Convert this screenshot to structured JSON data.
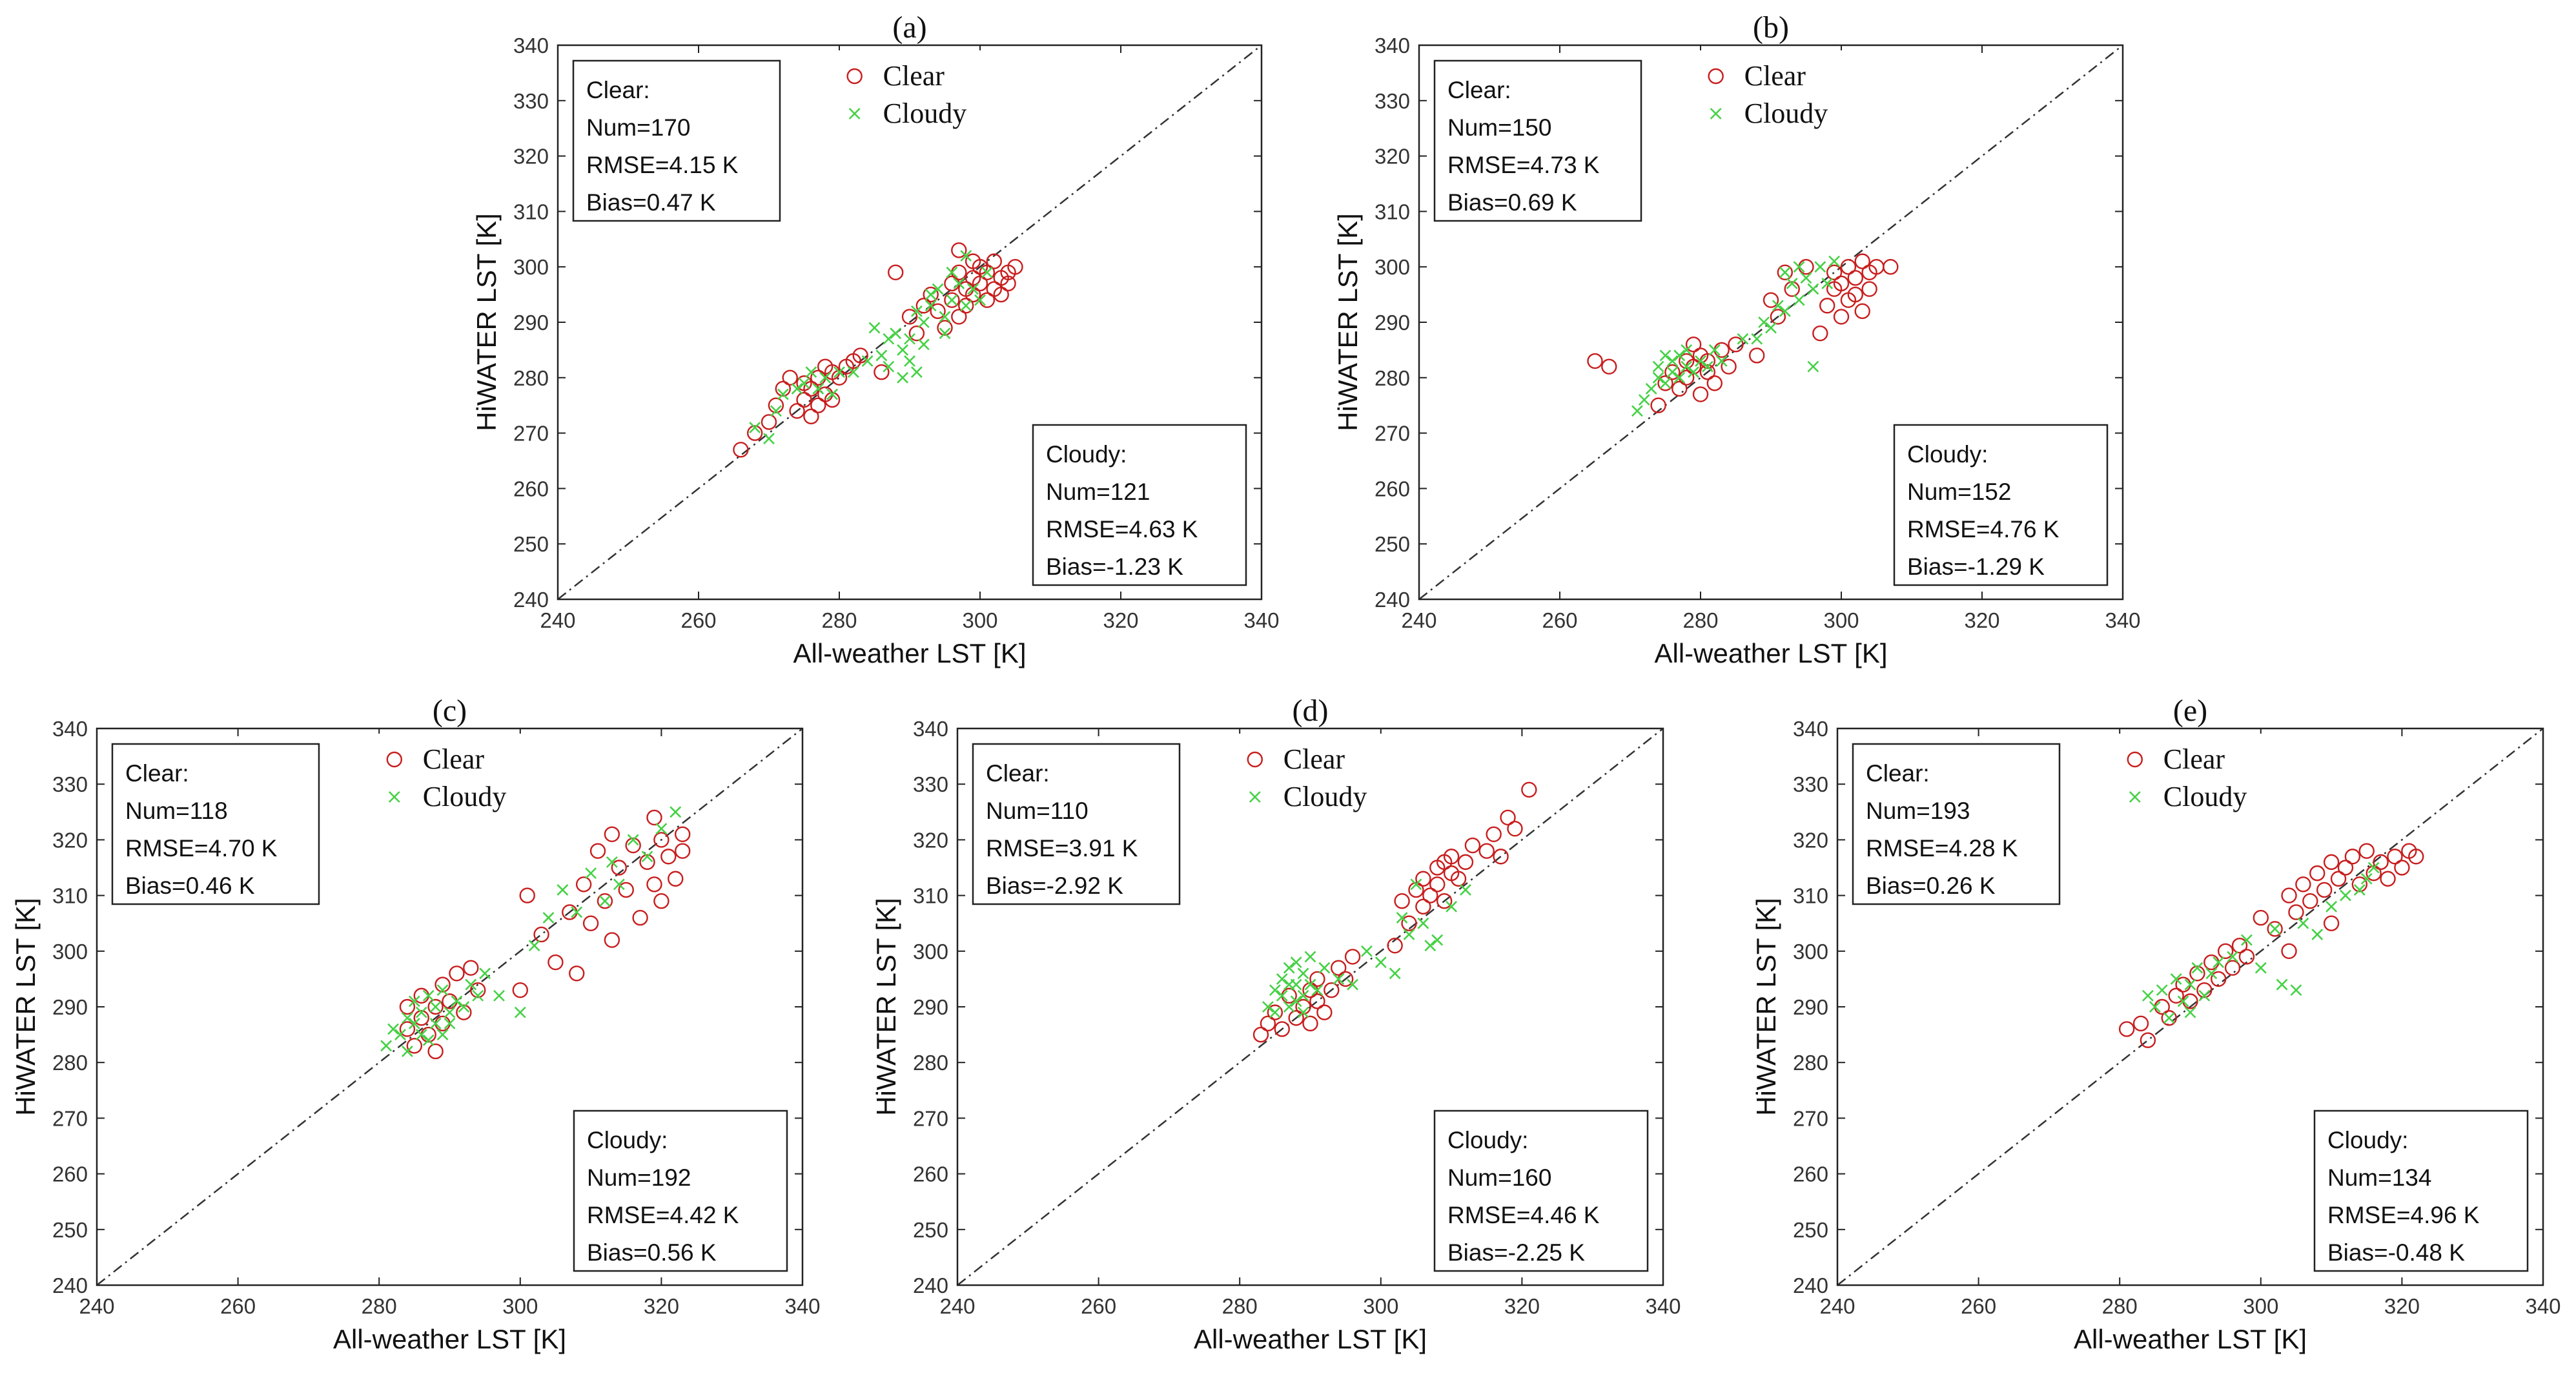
{
  "colors": {
    "clear": "#c81e1e",
    "cloudy": "#45d145",
    "axis": "#222222",
    "diagonal": "#333333"
  },
  "chart_data": [
    {
      "type": "scatter",
      "title": "(a)",
      "xlabel": "All-weather LST [K]",
      "ylabel": "HiWATER LST [K]",
      "xlim": [
        240,
        340
      ],
      "ylim": [
        240,
        340
      ],
      "xticks": [
        "240",
        "260",
        "280",
        "300",
        "320",
        "340"
      ],
      "yticks": [
        "240",
        "250",
        "260",
        "270",
        "280",
        "290",
        "300",
        "310",
        "320",
        "330",
        "340"
      ],
      "legend": [
        "Clear",
        "Cloudy"
      ],
      "clear_stats": [
        "Clear:",
        "Num=170",
        "RMSE=4.15 K",
        "Bias=0.47 K"
      ],
      "cloudy_stats": [
        "Cloudy:",
        "Num=121",
        "RMSE=4.63 K",
        "Bias=-1.23 K"
      ],
      "series": [
        {
          "name": "Clear",
          "marker": "circle",
          "x": [
            266,
            268,
            270,
            271,
            272,
            273,
            274,
            275,
            275,
            276,
            276,
            277,
            277,
            278,
            278,
            279,
            279,
            280,
            281,
            282,
            283,
            286,
            288,
            290,
            291,
            292,
            293,
            294,
            295,
            296,
            296,
            297,
            297,
            298,
            298,
            299,
            299,
            300,
            300,
            301,
            301,
            302,
            302,
            303,
            303,
            304,
            304,
            305,
            297,
            299
          ],
          "y": [
            267,
            270,
            272,
            275,
            278,
            280,
            274,
            276,
            279,
            273,
            278,
            275,
            280,
            277,
            282,
            276,
            281,
            280,
            282,
            283,
            284,
            281,
            299,
            291,
            288,
            293,
            295,
            292,
            289,
            294,
            297,
            291,
            299,
            296,
            293,
            298,
            295,
            300,
            297,
            294,
            299,
            301,
            296,
            298,
            295,
            299,
            297,
            300,
            303,
            301
          ]
        },
        {
          "name": "Cloudy",
          "marker": "x",
          "x": [
            268,
            270,
            271,
            272,
            274,
            275,
            276,
            277,
            278,
            279,
            280,
            282,
            284,
            286,
            287,
            288,
            289,
            290,
            290,
            291,
            292,
            292,
            293,
            294,
            295,
            295,
            296,
            297,
            298,
            299,
            300,
            301,
            291,
            289,
            287,
            285,
            293,
            296,
            298
          ],
          "y": [
            271,
            269,
            274,
            277,
            278,
            279,
            281,
            278,
            280,
            277,
            281,
            281,
            283,
            284,
            282,
            288,
            285,
            287,
            283,
            292,
            290,
            286,
            293,
            296,
            291,
            288,
            294,
            297,
            293,
            296,
            294,
            299,
            281,
            280,
            287,
            289,
            295,
            299,
            302
          ]
        }
      ]
    },
    {
      "type": "scatter",
      "title": "(b)",
      "xlabel": "All-weather LST [K]",
      "ylabel": "HiWATER LST [K]",
      "xlim": [
        240,
        340
      ],
      "ylim": [
        240,
        340
      ],
      "xticks": [
        "240",
        "260",
        "280",
        "300",
        "320",
        "340"
      ],
      "yticks": [
        "240",
        "250",
        "260",
        "270",
        "280",
        "290",
        "300",
        "310",
        "320",
        "330",
        "340"
      ],
      "legend": [
        "Clear",
        "Cloudy"
      ],
      "clear_stats": [
        "Clear:",
        "Num=150",
        "RMSE=4.73 K",
        "Bias=0.69 K"
      ],
      "cloudy_stats": [
        "Cloudy:",
        "Num=152",
        "RMSE=4.76 K",
        "Bias=-1.29 K"
      ],
      "series": [
        {
          "name": "Clear",
          "marker": "circle",
          "x": [
            265,
            267,
            274,
            275,
            276,
            277,
            278,
            278,
            279,
            279,
            280,
            280,
            281,
            281,
            282,
            283,
            284,
            285,
            288,
            290,
            291,
            292,
            293,
            295,
            297,
            298,
            299,
            299,
            300,
            300,
            301,
            301,
            302,
            302,
            303,
            303,
            304,
            304,
            305,
            307
          ],
          "y": [
            283,
            282,
            275,
            279,
            281,
            278,
            283,
            280,
            286,
            282,
            277,
            284,
            281,
            283,
            279,
            285,
            282,
            286,
            284,
            294,
            291,
            299,
            296,
            300,
            288,
            293,
            296,
            299,
            291,
            297,
            294,
            300,
            295,
            298,
            292,
            301,
            296,
            299,
            300,
            300
          ]
        },
        {
          "name": "Cloudy",
          "marker": "x",
          "x": [
            271,
            272,
            273,
            274,
            274,
            275,
            275,
            276,
            276,
            277,
            277,
            278,
            278,
            279,
            280,
            281,
            282,
            283,
            286,
            288,
            289,
            290,
            291,
            292,
            293,
            294,
            295,
            296,
            296,
            297,
            298,
            299,
            292,
            294
          ],
          "y": [
            274,
            276,
            278,
            280,
            282,
            279,
            284,
            281,
            283,
            280,
            284,
            282,
            285,
            281,
            283,
            282,
            285,
            283,
            287,
            287,
            290,
            289,
            293,
            292,
            297,
            294,
            298,
            296,
            282,
            300,
            297,
            301,
            299,
            300
          ]
        }
      ]
    },
    {
      "type": "scatter",
      "title": "(c)",
      "xlabel": "All-weather LST [K]",
      "ylabel": "HiWATER LST [K]",
      "xlim": [
        240,
        340
      ],
      "ylim": [
        240,
        340
      ],
      "xticks": [
        "240",
        "260",
        "280",
        "300",
        "320",
        "340"
      ],
      "yticks": [
        "240",
        "250",
        "260",
        "270",
        "280",
        "290",
        "300",
        "310",
        "320",
        "330",
        "340"
      ],
      "legend": [
        "Clear",
        "Cloudy"
      ],
      "clear_stats": [
        "Clear:",
        "Num=118",
        "RMSE=4.70 K",
        "Bias=0.46 K"
      ],
      "cloudy_stats": [
        "Cloudy:",
        "Num=192",
        "RMSE=4.42 K",
        "Bias=0.56 K"
      ],
      "series": [
        {
          "name": "Clear",
          "marker": "circle",
          "x": [
            284,
            284,
            285,
            286,
            286,
            287,
            288,
            288,
            289,
            289,
            290,
            291,
            292,
            293,
            294,
            300,
            301,
            303,
            305,
            307,
            308,
            309,
            310,
            311,
            312,
            313,
            313,
            314,
            315,
            316,
            317,
            318,
            319,
            319,
            320,
            320,
            321,
            322,
            323,
            323
          ],
          "y": [
            290,
            286,
            283,
            288,
            292,
            285,
            290,
            282,
            294,
            287,
            291,
            296,
            289,
            297,
            293,
            293,
            310,
            303,
            298,
            307,
            296,
            312,
            305,
            318,
            309,
            321,
            302,
            315,
            311,
            319,
            306,
            316,
            324,
            312,
            320,
            309,
            317,
            313,
            318,
            321
          ]
        },
        {
          "name": "Cloudy",
          "marker": "x",
          "x": [
            281,
            282,
            283,
            284,
            284,
            285,
            285,
            286,
            286,
            287,
            287,
            288,
            288,
            289,
            289,
            290,
            290,
            291,
            292,
            293,
            294,
            295,
            297,
            300,
            302,
            304,
            306,
            308,
            310,
            312,
            313,
            314,
            316,
            318,
            320,
            322
          ],
          "y": [
            283,
            286,
            285,
            288,
            282,
            287,
            291,
            285,
            289,
            284,
            292,
            287,
            290,
            285,
            293,
            289,
            287,
            291,
            290,
            294,
            292,
            296,
            292,
            289,
            301,
            306,
            311,
            307,
            314,
            309,
            316,
            312,
            320,
            317,
            322,
            325
          ]
        }
      ]
    },
    {
      "type": "scatter",
      "title": "(d)",
      "xlabel": "All-weather LST [K]",
      "ylabel": "HiWATER LST [K]",
      "xlim": [
        240,
        340
      ],
      "ylim": [
        240,
        340
      ],
      "xticks": [
        "240",
        "260",
        "280",
        "300",
        "320",
        "340"
      ],
      "yticks": [
        "240",
        "250",
        "260",
        "270",
        "280",
        "290",
        "300",
        "310",
        "320",
        "330",
        "340"
      ],
      "legend": [
        "Clear",
        "Cloudy"
      ],
      "clear_stats": [
        "Clear:",
        "Num=110",
        "RMSE=3.91 K",
        "Bias=-2.92 K"
      ],
      "cloudy_stats": [
        "Cloudy:",
        "Num=160",
        "RMSE=4.46 K",
        "Bias=-2.25 K"
      ],
      "series": [
        {
          "name": "Clear",
          "marker": "circle",
          "x": [
            283,
            284,
            285,
            286,
            287,
            288,
            289,
            290,
            290,
            291,
            291,
            292,
            293,
            294,
            295,
            296,
            302,
            303,
            304,
            305,
            306,
            306,
            307,
            308,
            308,
            309,
            309,
            310,
            310,
            311,
            312,
            313,
            315,
            316,
            317,
            318,
            319,
            321
          ],
          "y": [
            285,
            287,
            289,
            286,
            292,
            288,
            290,
            293,
            287,
            291,
            295,
            289,
            293,
            297,
            295,
            299,
            301,
            309,
            305,
            311,
            308,
            313,
            310,
            315,
            312,
            316,
            309,
            314,
            317,
            313,
            316,
            319,
            318,
            321,
            317,
            324,
            322,
            329
          ]
        },
        {
          "name": "Cloudy",
          "marker": "x",
          "x": [
            284,
            285,
            285,
            286,
            286,
            287,
            287,
            287,
            288,
            288,
            288,
            289,
            289,
            289,
            290,
            290,
            291,
            292,
            294,
            296,
            298,
            300,
            302,
            304,
            306,
            308,
            310,
            312,
            303,
            305,
            307
          ],
          "y": [
            290,
            293,
            289,
            292,
            295,
            290,
            294,
            297,
            291,
            294,
            298,
            292,
            296,
            289,
            294,
            299,
            293,
            297,
            295,
            294,
            300,
            298,
            296,
            303,
            305,
            302,
            308,
            311,
            306,
            312,
            301
          ]
        }
      ]
    },
    {
      "type": "scatter",
      "title": "(e)",
      "xlabel": "All-weather LST [K]",
      "ylabel": "HiWATER LST [K]",
      "xlim": [
        240,
        340
      ],
      "ylim": [
        240,
        340
      ],
      "xticks": [
        "240",
        "260",
        "280",
        "300",
        "320",
        "340"
      ],
      "yticks": [
        "240",
        "250",
        "260",
        "270",
        "280",
        "290",
        "300",
        "310",
        "320",
        "330",
        "340"
      ],
      "legend": [
        "Clear",
        "Cloudy"
      ],
      "clear_stats": [
        "Clear:",
        "Num=193",
        "RMSE=4.28 K",
        "Bias=0.26 K"
      ],
      "cloudy_stats": [
        "Cloudy:",
        "Num=134",
        "RMSE=4.96 K",
        "Bias=-0.48 K"
      ],
      "series": [
        {
          "name": "Clear",
          "marker": "circle",
          "x": [
            281,
            283,
            284,
            286,
            287,
            288,
            289,
            290,
            291,
            292,
            293,
            294,
            295,
            296,
            297,
            298,
            300,
            302,
            304,
            305,
            306,
            307,
            308,
            309,
            310,
            311,
            312,
            313,
            314,
            315,
            316,
            317,
            318,
            319,
            320,
            321,
            322,
            304,
            310
          ],
          "y": [
            286,
            287,
            284,
            290,
            288,
            292,
            294,
            291,
            296,
            293,
            298,
            295,
            300,
            297,
            301,
            299,
            306,
            304,
            310,
            307,
            312,
            309,
            314,
            311,
            316,
            313,
            315,
            317,
            312,
            318,
            314,
            316,
            313,
            317,
            315,
            318,
            317,
            300,
            305
          ]
        },
        {
          "name": "Cloudy",
          "marker": "x",
          "x": [
            284,
            285,
            286,
            287,
            288,
            289,
            290,
            290,
            291,
            292,
            293,
            294,
            296,
            298,
            300,
            302,
            303,
            305,
            306,
            308,
            310,
            312,
            314,
            315,
            316
          ],
          "y": [
            292,
            290,
            293,
            288,
            295,
            291,
            294,
            289,
            297,
            292,
            296,
            298,
            299,
            302,
            297,
            304,
            294,
            293,
            305,
            303,
            308,
            310,
            311,
            313,
            315
          ]
        }
      ]
    }
  ]
}
